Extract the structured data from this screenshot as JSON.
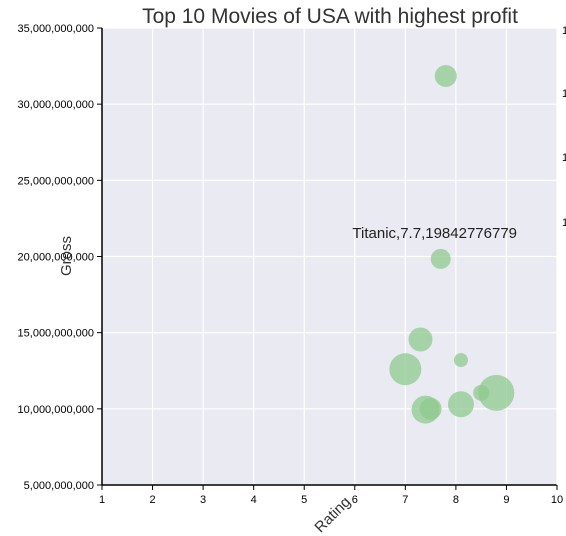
{
  "chart_data": {
    "type": "scatter",
    "title": "Top 10 Movies of USA with highest profit",
    "xlabel": "Rating",
    "ylabel": "Gross",
    "xlim": [
      1,
      10
    ],
    "ylim": [
      5000000000,
      35000000000
    ],
    "x_ticks": [
      1,
      2,
      3,
      4,
      5,
      6,
      7,
      8,
      9,
      10
    ],
    "y_ticks": [
      5000000000,
      10000000000,
      15000000000,
      20000000000,
      25000000000,
      30000000000,
      35000000000
    ],
    "y_tick_labels": [
      "5,000,000,000",
      "10,000,000,000",
      "15,000,000,000",
      "20,000,000,000",
      "25,000,000,000",
      "30,000,000,000",
      "35,000,000,000"
    ],
    "grid": true,
    "background": "#eaeaf2",
    "marker_color": "#8fc98f",
    "points": [
      {
        "x": 7.8,
        "y": 31850000000,
        "size": 11
      },
      {
        "x": 7.7,
        "y": 19842776779,
        "size": 10
      },
      {
        "x": 7.3,
        "y": 14550000000,
        "size": 12
      },
      {
        "x": 8.1,
        "y": 13200000000,
        "size": 7
      },
      {
        "x": 7.0,
        "y": 12600000000,
        "size": 16
      },
      {
        "x": 8.8,
        "y": 11050000000,
        "size": 18
      },
      {
        "x": 8.5,
        "y": 11050000000,
        "size": 8
      },
      {
        "x": 8.1,
        "y": 10300000000,
        "size": 13
      },
      {
        "x": 7.4,
        "y": 9950000000,
        "size": 14
      },
      {
        "x": 7.5,
        "y": 10000000000,
        "size": 11
      }
    ],
    "annotation": {
      "text": "Titanic,7.7,19842776779",
      "x": 7.7,
      "y": 19842776779
    },
    "right_edge_labels": [
      "1",
      "1",
      "1",
      "1"
    ]
  }
}
